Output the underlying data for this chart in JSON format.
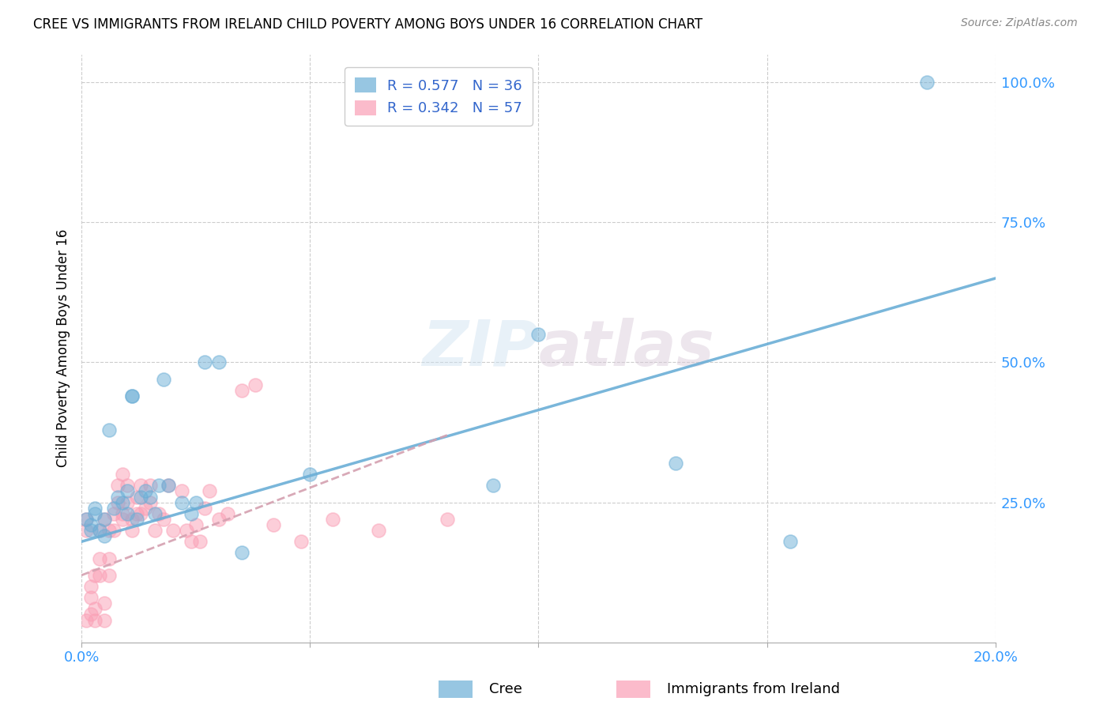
{
  "title": "CREE VS IMMIGRANTS FROM IRELAND CHILD POVERTY AMONG BOYS UNDER 16 CORRELATION CHART",
  "source": "Source: ZipAtlas.com",
  "ylabel": "Child Poverty Among Boys Under 16",
  "xlim": [
    0.0,
    0.2
  ],
  "ylim": [
    0.0,
    1.05
  ],
  "xtick_labels": [
    "0.0%",
    "",
    "",
    "",
    "20.0%"
  ],
  "xtick_vals": [
    0.0,
    0.05,
    0.1,
    0.15,
    0.2
  ],
  "ytick_labels": [
    "25.0%",
    "50.0%",
    "75.0%",
    "100.0%"
  ],
  "ytick_vals": [
    0.25,
    0.5,
    0.75,
    1.0
  ],
  "cree_color": "#6baed6",
  "ireland_color": "#fa9fb5",
  "cree_line_color": "#6baed6",
  "ireland_line_color": "#d4a0b0",
  "cree_R": 0.577,
  "cree_N": 36,
  "ireland_R": 0.342,
  "ireland_N": 57,
  "watermark": "ZIPatlas",
  "legend_label_cree": "Cree",
  "legend_label_ireland": "Immigrants from Ireland",
  "cree_trend_x": [
    0.0,
    0.2
  ],
  "cree_trend_y": [
    0.18,
    0.65
  ],
  "ireland_trend_x": [
    0.0,
    0.08
  ],
  "ireland_trend_y": [
    0.12,
    0.37
  ],
  "cree_scatter_x": [
    0.001,
    0.002,
    0.002,
    0.003,
    0.003,
    0.004,
    0.005,
    0.005,
    0.006,
    0.007,
    0.008,
    0.009,
    0.01,
    0.01,
    0.011,
    0.011,
    0.012,
    0.013,
    0.014,
    0.015,
    0.016,
    0.017,
    0.018,
    0.019,
    0.022,
    0.024,
    0.025,
    0.027,
    0.03,
    0.035,
    0.05,
    0.09,
    0.1,
    0.13,
    0.155,
    0.185
  ],
  "cree_scatter_y": [
    0.22,
    0.2,
    0.21,
    0.24,
    0.23,
    0.2,
    0.19,
    0.22,
    0.38,
    0.24,
    0.26,
    0.25,
    0.27,
    0.23,
    0.44,
    0.44,
    0.22,
    0.26,
    0.27,
    0.26,
    0.23,
    0.28,
    0.47,
    0.28,
    0.25,
    0.23,
    0.25,
    0.5,
    0.5,
    0.16,
    0.3,
    0.28,
    0.55,
    0.32,
    0.18,
    1.0
  ],
  "ireland_scatter_x": [
    0.001,
    0.001,
    0.001,
    0.002,
    0.002,
    0.002,
    0.003,
    0.003,
    0.003,
    0.004,
    0.004,
    0.004,
    0.005,
    0.005,
    0.005,
    0.006,
    0.006,
    0.006,
    0.007,
    0.007,
    0.008,
    0.008,
    0.009,
    0.009,
    0.009,
    0.01,
    0.01,
    0.011,
    0.011,
    0.012,
    0.012,
    0.013,
    0.013,
    0.014,
    0.015,
    0.015,
    0.016,
    0.017,
    0.018,
    0.019,
    0.02,
    0.022,
    0.023,
    0.024,
    0.025,
    0.026,
    0.027,
    0.028,
    0.03,
    0.032,
    0.035,
    0.038,
    0.042,
    0.048,
    0.055,
    0.065,
    0.08
  ],
  "ireland_scatter_y": [
    0.2,
    0.22,
    0.04,
    0.05,
    0.08,
    0.1,
    0.04,
    0.06,
    0.12,
    0.12,
    0.15,
    0.2,
    0.04,
    0.07,
    0.22,
    0.12,
    0.15,
    0.2,
    0.2,
    0.23,
    0.25,
    0.28,
    0.22,
    0.23,
    0.3,
    0.25,
    0.28,
    0.2,
    0.22,
    0.23,
    0.26,
    0.23,
    0.28,
    0.24,
    0.25,
    0.28,
    0.2,
    0.23,
    0.22,
    0.28,
    0.2,
    0.27,
    0.2,
    0.18,
    0.21,
    0.18,
    0.24,
    0.27,
    0.22,
    0.23,
    0.45,
    0.46,
    0.21,
    0.18,
    0.22,
    0.2,
    0.22
  ]
}
